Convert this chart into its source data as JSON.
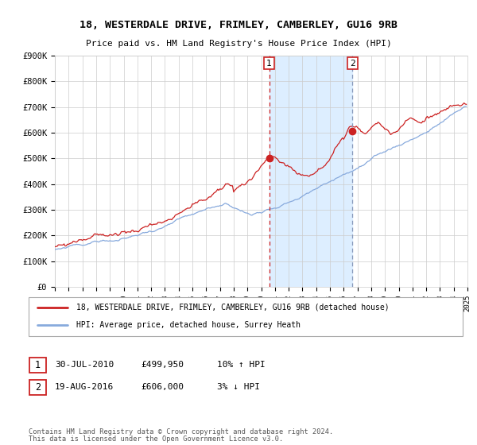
{
  "title": "18, WESTERDALE DRIVE, FRIMLEY, CAMBERLEY, GU16 9RB",
  "subtitle": "Price paid vs. HM Land Registry's House Price Index (HPI)",
  "y_ticks": [
    0,
    100000,
    200000,
    300000,
    400000,
    500000,
    600000,
    700000,
    800000,
    900000
  ],
  "y_tick_labels": [
    "£0",
    "£100K",
    "£200K",
    "£300K",
    "£400K",
    "£500K",
    "£600K",
    "£700K",
    "£800K",
    "£900K"
  ],
  "sale1_date": 2010.58,
  "sale1_price": 499950,
  "sale2_date": 2016.64,
  "sale2_price": 606000,
  "shade_color": "#ddeeff",
  "line_color_red": "#cc2222",
  "line_color_blue": "#88aadd",
  "vline1_color": "#cc2222",
  "vline2_color": "#8899bb",
  "grid_color": "#cccccc",
  "bg_color": "#ffffff",
  "legend_label_red": "18, WESTERDALE DRIVE, FRIMLEY, CAMBERLEY, GU16 9RB (detached house)",
  "legend_label_blue": "HPI: Average price, detached house, Surrey Heath",
  "ann1_date": "30-JUL-2010",
  "ann1_price": "£499,950",
  "ann1_hpi": "10% ↑ HPI",
  "ann2_date": "19-AUG-2016",
  "ann2_price": "£606,000",
  "ann2_hpi": "3% ↓ HPI",
  "footer_line1": "Contains HM Land Registry data © Crown copyright and database right 2024.",
  "footer_line2": "This data is licensed under the Open Government Licence v3.0."
}
